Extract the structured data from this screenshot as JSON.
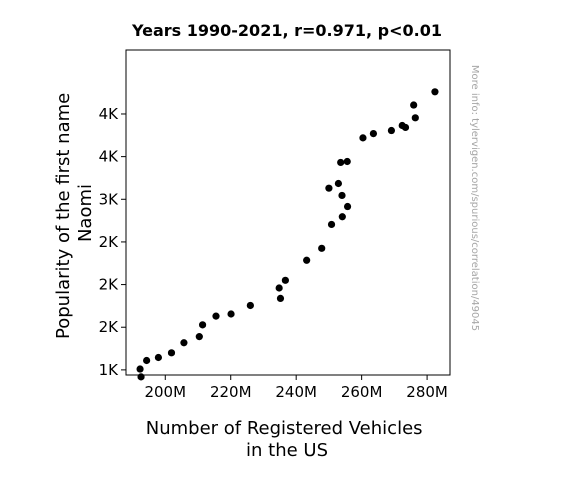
{
  "chart_data": {
    "type": "scatter",
    "title": "Years 1990-2021, r=0.971, p<0.01",
    "xlabel_lines": [
      "Number of Registered Vehicles",
      "in the US"
    ],
    "ylabel_lines": [
      "Popularity of the first name",
      "Naomi"
    ],
    "watermark": "More info: tylervigen.com/spurious/correlation/49045",
    "xlim": [
      188,
      287
    ],
    "ylim": [
      940,
      4750
    ],
    "x_ticks": [
      {
        "value": 200,
        "label": "200M"
      },
      {
        "value": 220,
        "label": "220M"
      },
      {
        "value": 240,
        "label": "240M"
      },
      {
        "value": 260,
        "label": "260M"
      },
      {
        "value": 280,
        "label": "280M"
      }
    ],
    "y_ticks": [
      {
        "value": 1000,
        "label": "1K"
      },
      {
        "value": 1500,
        "label": "2K"
      },
      {
        "value": 2000,
        "label": "2K"
      },
      {
        "value": 2500,
        "label": "2K"
      },
      {
        "value": 3000,
        "label": "3K"
      },
      {
        "value": 3500,
        "label": "4K"
      },
      {
        "value": 4000,
        "label": "4K"
      }
    ],
    "points": [
      {
        "x": 192.3,
        "y": 1010
      },
      {
        "x": 192.6,
        "y": 918
      },
      {
        "x": 194.3,
        "y": 1110
      },
      {
        "x": 197.9,
        "y": 1145
      },
      {
        "x": 201.9,
        "y": 1200
      },
      {
        "x": 205.7,
        "y": 1318
      },
      {
        "x": 210.4,
        "y": 1390
      },
      {
        "x": 211.4,
        "y": 1528
      },
      {
        "x": 215.5,
        "y": 1630
      },
      {
        "x": 220.1,
        "y": 1655
      },
      {
        "x": 226.0,
        "y": 1755
      },
      {
        "x": 234.8,
        "y": 1960
      },
      {
        "x": 235.2,
        "y": 1838
      },
      {
        "x": 236.7,
        "y": 2050
      },
      {
        "x": 243.2,
        "y": 2285
      },
      {
        "x": 247.8,
        "y": 2425
      },
      {
        "x": 250.0,
        "y": 3130
      },
      {
        "x": 250.8,
        "y": 2705
      },
      {
        "x": 252.9,
        "y": 3185
      },
      {
        "x": 253.6,
        "y": 3432
      },
      {
        "x": 254.0,
        "y": 3045
      },
      {
        "x": 254.1,
        "y": 2795
      },
      {
        "x": 255.6,
        "y": 3443
      },
      {
        "x": 255.7,
        "y": 2915
      },
      {
        "x": 260.4,
        "y": 3720
      },
      {
        "x": 263.6,
        "y": 3770
      },
      {
        "x": 269.1,
        "y": 3806
      },
      {
        "x": 272.4,
        "y": 3865
      },
      {
        "x": 273.4,
        "y": 3842
      },
      {
        "x": 275.9,
        "y": 4105
      },
      {
        "x": 276.4,
        "y": 3955
      },
      {
        "x": 282.4,
        "y": 4260
      }
    ]
  }
}
